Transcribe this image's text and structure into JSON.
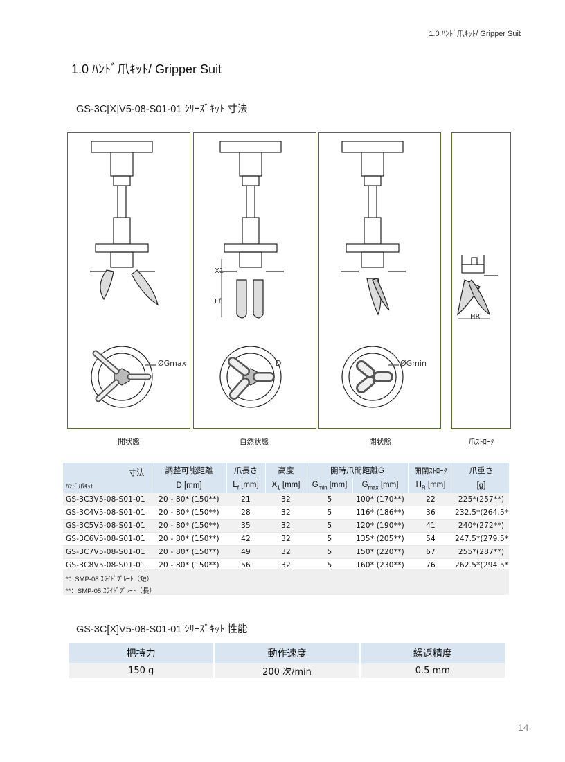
{
  "running_header": "1.0 ﾊﾝﾄﾞ爪ｷｯﾄ/ Gripper Suit",
  "section_title": "1.0 ﾊﾝﾄﾞ爪ｷｯﾄ/ Gripper Suit",
  "dimensions_title": "GS-3C[X]V5-08-S01-01 ｼﾘｰｽﾞｷｯﾄ 寸法",
  "diagram_labels": {
    "gmax": "ØGmax",
    "d": "D",
    "gmin": "ØGmin",
    "x1": "X1",
    "lf": "Lf",
    "hr": "HR"
  },
  "captions": [
    "開状態",
    "自然状態",
    "閉状態",
    "爪ｽﾄﾛｰｸ"
  ],
  "spec_table": {
    "corner_top": "寸法",
    "corner_bottom": "ﾊﾝﾄﾞ爪ｷｯﾄ",
    "h_adjust": "調整可能距離",
    "h_adjust_unit": "D [mm]",
    "h_claw_len": "爪長さ",
    "h_claw_len_sym": "L",
    "h_claw_len_sub": "f",
    "h_claw_len_unit": " [mm]",
    "h_height": "高度",
    "h_height_sym": "X",
    "h_height_sub": "1",
    "h_height_unit": " [mm]",
    "h_open_dist": "開時爪間距離G",
    "h_gmin_sym": "G",
    "h_gmin_sub": "min",
    "h_gmin_unit": " [mm]",
    "h_gmax_sym": "G",
    "h_gmax_sub": "max",
    "h_gmax_unit": " [mm]",
    "h_stroke": "開閉ｽﾄﾛｰｸ",
    "h_stroke_sym": "H",
    "h_stroke_sub": "R",
    "h_stroke_unit": " [mm]",
    "h_weight": "爪重さ",
    "h_weight_unit": "[g]",
    "rows": [
      {
        "model": "GS-3C3V5-08-S01-01",
        "d": "20 - 80* (150**)",
        "lf": "21",
        "x1": "32",
        "gmin": "5",
        "gmax": "100* (170**)",
        "hr": "22",
        "weight": "225*(257**)"
      },
      {
        "model": "GS-3C4V5-08-S01-01",
        "d": "20 - 80* (150**)",
        "lf": "28",
        "x1": "32",
        "gmin": "5",
        "gmax": "116* (186**)",
        "hr": "36",
        "weight": "232.5*(264.5**)"
      },
      {
        "model": "GS-3C5V5-08-S01-01",
        "d": "20 - 80* (150**)",
        "lf": "35",
        "x1": "32",
        "gmin": "5",
        "gmax": "120* (190**)",
        "hr": "41",
        "weight": "240*(272**)"
      },
      {
        "model": "GS-3C6V5-08-S01-01",
        "d": "20 - 80* (150**)",
        "lf": "42",
        "x1": "32",
        "gmin": "5",
        "gmax": "135* (205**)",
        "hr": "54",
        "weight": "247.5*(279.5**)"
      },
      {
        "model": "GS-3C7V5-08-S01-01",
        "d": "20 - 80* (150**)",
        "lf": "49",
        "x1": "32",
        "gmin": "5",
        "gmax": "150* (220**)",
        "hr": "67",
        "weight": "255*(287**)"
      },
      {
        "model": "GS-3C8V5-08-S01-01",
        "d": "20 - 80* (150**)",
        "lf": "56",
        "x1": "32",
        "gmin": "5",
        "gmax": "160* (230**)",
        "hr": "76",
        "weight": "262.5*(294.5**)"
      }
    ]
  },
  "notes": [
    "*：SMP-08 ｽﾗｲﾄﾞﾌﾟﾚｰﾄ（短）",
    "**：SMP-05 ｽﾗｲﾄﾞﾌﾟﾚｰﾄ（長）"
  ],
  "performance_title": "GS-3C[X]V5-08-S01-01 ｼﾘｰｽﾞｷｯﾄ 性能",
  "performance_table": {
    "headers": [
      "把持力",
      "動作速度",
      "繰返精度"
    ],
    "values": [
      "150 g",
      "200 次/min",
      "0.5 mm"
    ]
  },
  "page_number": "14"
}
